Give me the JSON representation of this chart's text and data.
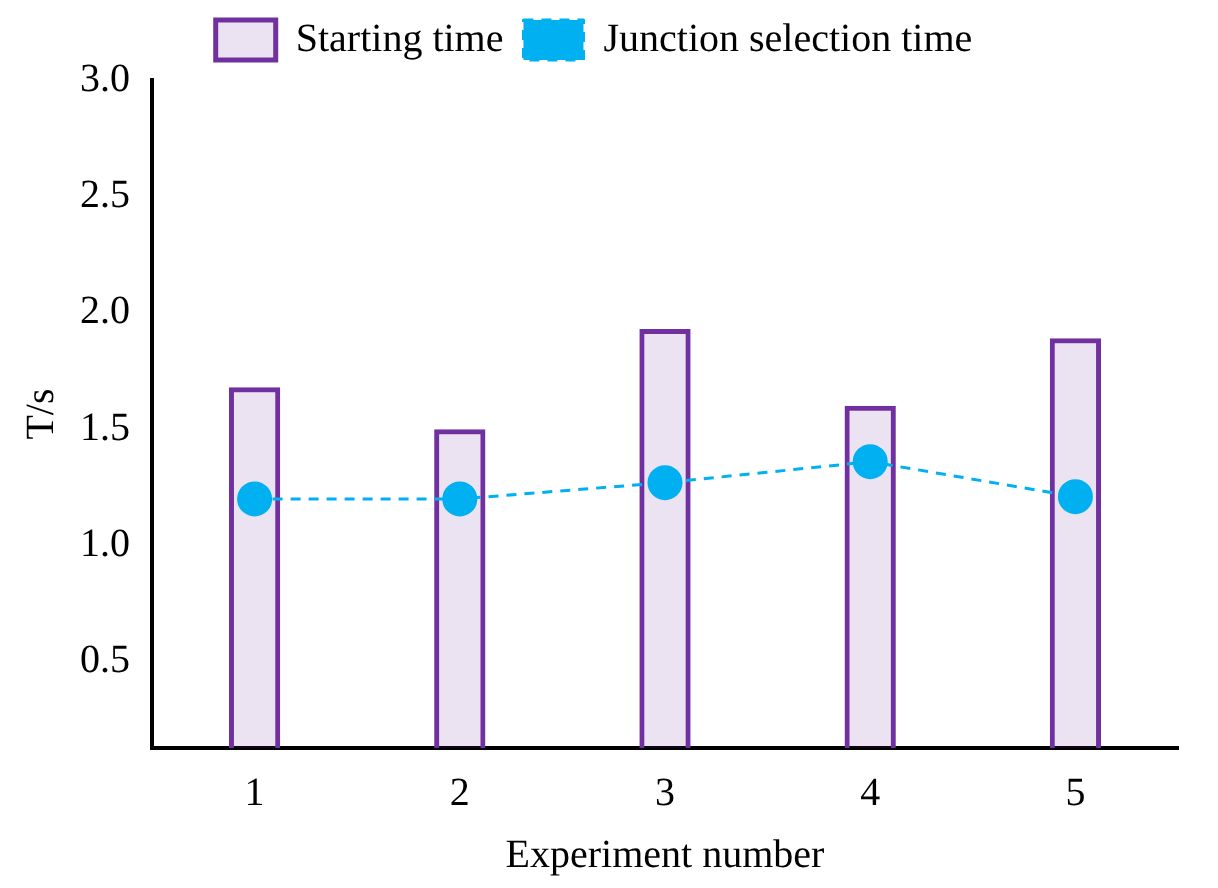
{
  "chart_data": {
    "type": "bar",
    "xlabel": "Experiment number",
    "ylabel": "T/s",
    "categories": [
      "1",
      "2",
      "3",
      "4",
      "5"
    ],
    "series": [
      {
        "name": "Starting time",
        "color": "#7030a0",
        "values": [
          1.68,
          1.5,
          1.93,
          1.6,
          1.89
        ]
      },
      {
        "name": "Junction selection time",
        "type": "line",
        "color": "#00b0f0",
        "values": [
          1.2,
          1.2,
          1.27,
          1.36,
          1.21
        ],
        "marker": "circle",
        "line_style": "dashed"
      }
    ],
    "ylim": [
      0.13,
      3.0
    ],
    "yticks": [
      {
        "value": 0.5,
        "label": "0.5"
      },
      {
        "value": 1.0,
        "label": "1.0"
      },
      {
        "value": 1.5,
        "label": "1.5"
      },
      {
        "value": 2.0,
        "label": "2.0"
      },
      {
        "value": 2.5,
        "label": "2.5"
      },
      {
        "value": 3.0,
        "label": "3.0"
      }
    ],
    "grid": false,
    "legend": "top"
  }
}
